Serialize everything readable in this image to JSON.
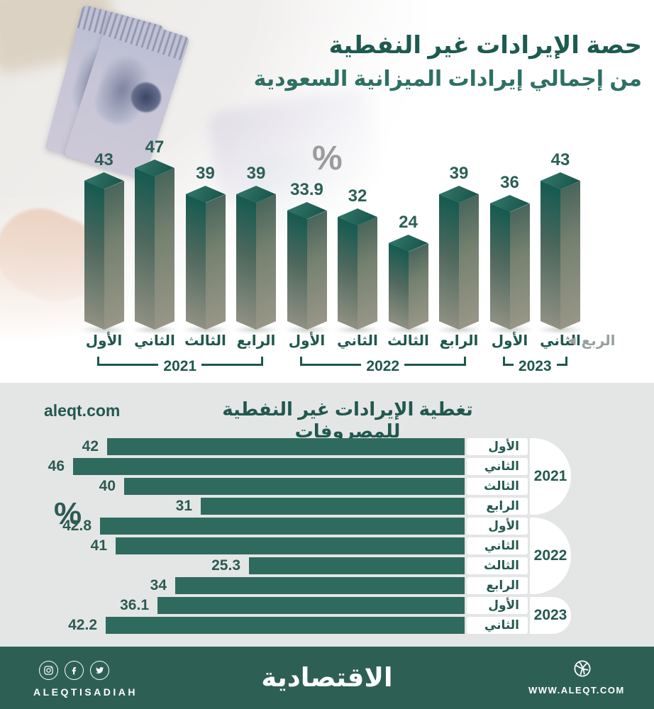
{
  "header": {
    "title_line1": "حصة الإيرادات غير النفطية",
    "title_line2": "من إجمالي إيرادات الميزانية السعودية",
    "unit_symbol": "%"
  },
  "bottom_section": {
    "title": "تغطية الإيرادات غير النفطية للمصروفات",
    "site": "aleqt.com",
    "unit_symbol": "%"
  },
  "axis_note": {
    "label": "الربع",
    "arrow": "◀"
  },
  "chart_data": [
    {
      "type": "bar",
      "title": "حصة الإيرادات غير النفطية من إجمالي إيرادات الميزانية السعودية",
      "ylabel": "%",
      "categories": [
        "الأول",
        "الثاني",
        "الثالث",
        "الرابع",
        "الأول",
        "الثاني",
        "الثالث",
        "الرابع",
        "الأول",
        "الثاني"
      ],
      "values": [
        43,
        47,
        39,
        39,
        33.9,
        32,
        24,
        39,
        36,
        43
      ],
      "groups": [
        {
          "label": "2021",
          "start": 0,
          "end": 3
        },
        {
          "label": "2022",
          "start": 4,
          "end": 7
        },
        {
          "label": "2023",
          "start": 8,
          "end": 9
        }
      ],
      "legend_position": "none",
      "grid": false
    },
    {
      "type": "bar",
      "orientation": "horizontal",
      "title": "تغطية الإيرادات غير النفطية للمصروفات",
      "xlabel": "%",
      "categories": [
        "الأول",
        "الثاني",
        "الثالث",
        "الرابع",
        "الأول",
        "الثاني",
        "الثالث",
        "الرابع",
        "الأول",
        "الثاني"
      ],
      "values": [
        42,
        46,
        40,
        31,
        42.8,
        41,
        25.3,
        34,
        36.1,
        42.2
      ],
      "groups": [
        {
          "label": "2021",
          "start": 0,
          "end": 3
        },
        {
          "label": "2022",
          "start": 4,
          "end": 7
        },
        {
          "label": "2023",
          "start": 8,
          "end": 9
        }
      ],
      "legend_position": "none",
      "grid": false
    }
  ],
  "footer": {
    "brand": "الاقتصادية",
    "handle": "ALEQTISADIAH",
    "url": "WWW.ALEQT.COM",
    "icons": [
      "instagram-icon",
      "facebook-icon",
      "twitter-icon",
      "globe-icon"
    ]
  },
  "colors": {
    "teal_dark": "#1d5a50",
    "teal_mid": "#2d7064",
    "bar_flat": "#2f6a5e",
    "gray_label": "#9b9b9b",
    "section_bg": "#e4e6e5",
    "footer_bg": "#2e5f55"
  }
}
